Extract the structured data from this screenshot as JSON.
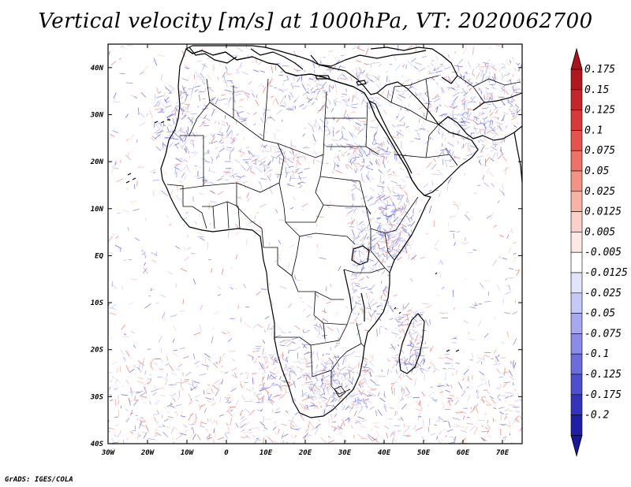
{
  "title": "Vertical velocity [m/s] at 1000hPa, VT: 2020062700",
  "footer": "GrADS: IGES/COLA",
  "map": {
    "lon_ticks": [
      "30W",
      "20W",
      "10W",
      "0",
      "10E",
      "20E",
      "30E",
      "40E",
      "50E",
      "60E",
      "70E"
    ],
    "lat_ticks": [
      "40N",
      "30N",
      "20N",
      "10N",
      "EQ",
      "10S",
      "20S",
      "30S",
      "40S"
    ],
    "lon_range": [
      -30,
      75
    ],
    "lat_range": [
      -40,
      45
    ],
    "land_outline_color": "#000000",
    "background_color": "#ffffff"
  },
  "colorbar": {
    "levels": [
      {
        "label": "0.175",
        "color": "#b0171f"
      },
      {
        "label": "0.15",
        "color": "#c4262b"
      },
      {
        "label": "0.125",
        "color": "#d8393a"
      },
      {
        "label": "0.1",
        "color": "#e5534f"
      },
      {
        "label": "0.075",
        "color": "#ed7268"
      },
      {
        "label": "0.05",
        "color": "#f29384"
      },
      {
        "label": "0.025",
        "color": "#f6b3a6"
      },
      {
        "label": "0.0125",
        "color": "#fad0c8"
      },
      {
        "label": "0.005",
        "color": "#fde8e4"
      },
      {
        "label": "-0.005",
        "color": "#ffffff"
      },
      {
        "label": "-0.0125",
        "color": "#e3e4fa"
      },
      {
        "label": "-0.025",
        "color": "#c6c8f5"
      },
      {
        "label": "-0.05",
        "color": "#a7a9ee"
      },
      {
        "label": "-0.075",
        "color": "#8a8ce5"
      },
      {
        "label": "-0.1",
        "color": "#6b6dda"
      },
      {
        "label": "-0.125",
        "color": "#4e4fcd"
      },
      {
        "label": "-0.175",
        "color": "#3334bb"
      },
      {
        "label": "-0.2",
        "color": "#1f1fa5"
      }
    ],
    "top_color": "#a8141c",
    "bottom_color": "#17179a"
  }
}
